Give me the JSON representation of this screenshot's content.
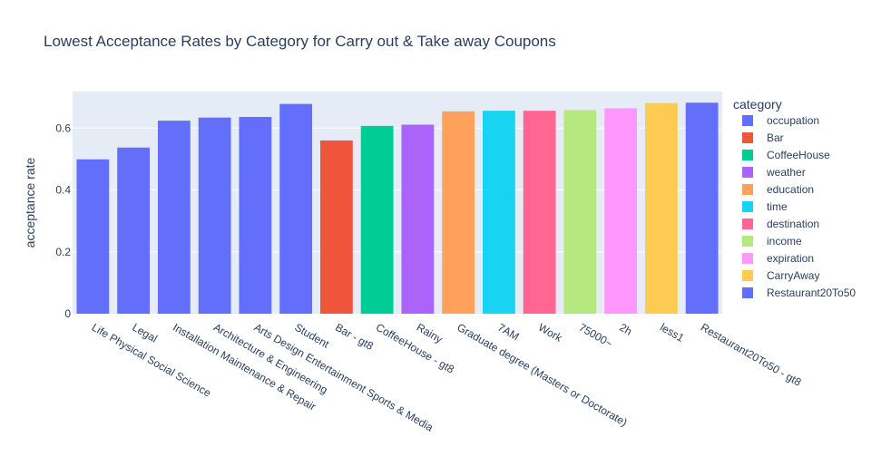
{
  "chart_data": {
    "type": "bar",
    "title": "Lowest Acceptance Rates by Category for Carry out & Take away Coupons",
    "xlabel": "",
    "ylabel": "acceptance rate",
    "ylim": [
      0,
      0.718
    ],
    "yticks": [
      0,
      0.2,
      0.4,
      0.6
    ],
    "ytick_labels": [
      "0",
      "0.2",
      "0.4",
      "0.6"
    ],
    "grid": true,
    "legend_title": "category",
    "legend_position": "right",
    "categories": [
      "Life Physical Social Science",
      "Legal",
      "Installation Maintenance & Repair",
      "Architecture & Engineering",
      "Arts Design Entertainment Sports & Media",
      "Student",
      "Bar - gt8",
      "CoffeeHouse - gt8",
      "Rainy",
      "Graduate degree (Masters or Doctorate)",
      "7AM",
      "Work",
      "75000~",
      "2h",
      "less1",
      "Restaurant20To50 - gt8"
    ],
    "values": [
      0.499,
      0.537,
      0.624,
      0.634,
      0.636,
      0.678,
      0.56,
      0.607,
      0.611,
      0.654,
      0.656,
      0.656,
      0.658,
      0.664,
      0.681,
      0.682
    ],
    "bar_series": [
      "occupation",
      "occupation",
      "occupation",
      "occupation",
      "occupation",
      "occupation",
      "Bar",
      "CoffeeHouse",
      "weather",
      "education",
      "time",
      "destination",
      "income",
      "expiration",
      "CarryAway",
      "Restaurant20To50"
    ],
    "series": [
      {
        "name": "occupation",
        "color": "#636efa"
      },
      {
        "name": "Bar",
        "color": "#EF553B"
      },
      {
        "name": "CoffeeHouse",
        "color": "#00cc96"
      },
      {
        "name": "weather",
        "color": "#ab63fa"
      },
      {
        "name": "education",
        "color": "#FFA15A"
      },
      {
        "name": "time",
        "color": "#19d3f3"
      },
      {
        "name": "destination",
        "color": "#FF6692"
      },
      {
        "name": "income",
        "color": "#B6E880"
      },
      {
        "name": "expiration",
        "color": "#FF97FF"
      },
      {
        "name": "CarryAway",
        "color": "#FECB52"
      },
      {
        "name": "Restaurant20To50",
        "color": "#636efa"
      }
    ],
    "plot_bg": "#e5ecf6",
    "grid_color": "#ffffff"
  }
}
